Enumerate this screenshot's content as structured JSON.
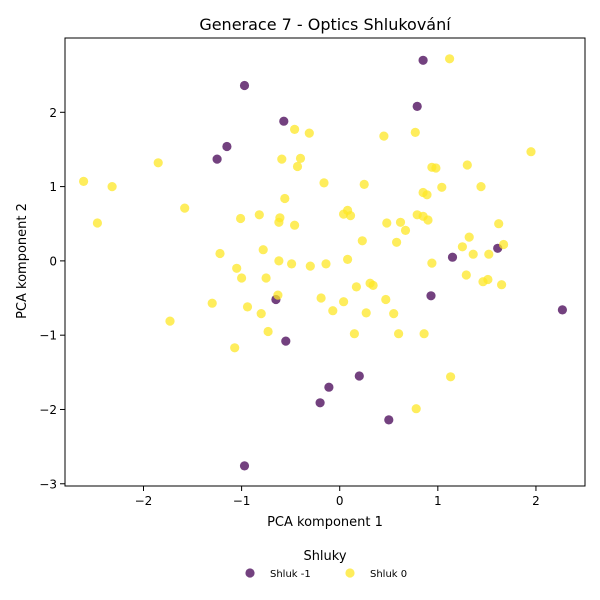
{
  "chart_data": {
    "type": "scatter",
    "title": "Generace 7 - Optics Shlukování",
    "xlabel": "PCA komponent 1",
    "ylabel": "PCA komponent 2",
    "xlim": [
      -2.8,
      2.5
    ],
    "ylim": [
      -3.03,
      3.0
    ],
    "xticks": [
      -2,
      -1,
      0,
      1,
      2
    ],
    "yticks": [
      -3,
      -2,
      -1,
      0,
      1,
      2
    ],
    "grid": false,
    "legend": {
      "title": "Shluky",
      "placement": "bottom-center"
    },
    "series": [
      {
        "name": "Shluk -1",
        "color": "#440154",
        "points": [
          [
            -0.97,
            2.36
          ],
          [
            0.85,
            2.7
          ],
          [
            0.79,
            2.08
          ],
          [
            -0.57,
            1.88
          ],
          [
            -1.15,
            1.54
          ],
          [
            -1.25,
            1.37
          ],
          [
            1.61,
            0.17
          ],
          [
            1.15,
            0.05
          ],
          [
            -0.65,
            -0.52
          ],
          [
            0.93,
            -0.47
          ],
          [
            -0.55,
            -1.08
          ],
          [
            2.27,
            -0.66
          ],
          [
            0.2,
            -1.55
          ],
          [
            -0.11,
            -1.7
          ],
          [
            -0.2,
            -1.91
          ],
          [
            0.5,
            -2.14
          ],
          [
            -0.97,
            -2.76
          ]
        ]
      },
      {
        "name": "Shluk 0",
        "color": "#fde725",
        "points": [
          [
            1.12,
            2.72
          ],
          [
            -0.46,
            1.77
          ],
          [
            -0.31,
            1.72
          ],
          [
            0.45,
            1.68
          ],
          [
            0.77,
            1.73
          ],
          [
            1.95,
            1.47
          ],
          [
            -1.85,
            1.32
          ],
          [
            -0.59,
            1.37
          ],
          [
            -0.4,
            1.38
          ],
          [
            -0.43,
            1.27
          ],
          [
            0.94,
            1.26
          ],
          [
            0.98,
            1.25
          ],
          [
            1.3,
            1.29
          ],
          [
            -2.61,
            1.07
          ],
          [
            -2.32,
            1.0
          ],
          [
            -0.16,
            1.05
          ],
          [
            0.25,
            1.03
          ],
          [
            1.04,
            0.99
          ],
          [
            1.44,
            1.0
          ],
          [
            0.85,
            0.92
          ],
          [
            0.89,
            0.89
          ],
          [
            -0.56,
            0.84
          ],
          [
            -1.58,
            0.71
          ],
          [
            -2.47,
            0.51
          ],
          [
            -1.01,
            0.57
          ],
          [
            -0.82,
            0.62
          ],
          [
            -0.61,
            0.58
          ],
          [
            -0.62,
            0.52
          ],
          [
            -0.46,
            0.48
          ],
          [
            0.04,
            0.63
          ],
          [
            0.08,
            0.68
          ],
          [
            0.11,
            0.61
          ],
          [
            0.79,
            0.62
          ],
          [
            0.85,
            0.6
          ],
          [
            0.9,
            0.55
          ],
          [
            0.48,
            0.51
          ],
          [
            0.62,
            0.52
          ],
          [
            0.67,
            0.41
          ],
          [
            1.62,
            0.5
          ],
          [
            0.23,
            0.27
          ],
          [
            0.58,
            0.25
          ],
          [
            1.32,
            0.32
          ],
          [
            1.25,
            0.19
          ],
          [
            -1.22,
            0.1
          ],
          [
            -0.78,
            0.15
          ],
          [
            1.36,
            0.09
          ],
          [
            1.52,
            0.09
          ],
          [
            1.67,
            0.22
          ],
          [
            0.08,
            0.02
          ],
          [
            -0.62,
            0.0
          ],
          [
            -0.49,
            -0.04
          ],
          [
            -0.3,
            -0.07
          ],
          [
            -0.14,
            -0.04
          ],
          [
            0.94,
            -0.03
          ],
          [
            -1.05,
            -0.1
          ],
          [
            -1.0,
            -0.23
          ],
          [
            -0.75,
            -0.23
          ],
          [
            1.29,
            -0.19
          ],
          [
            1.46,
            -0.28
          ],
          [
            1.51,
            -0.25
          ],
          [
            1.65,
            -0.32
          ],
          [
            0.31,
            -0.3
          ],
          [
            0.34,
            -0.33
          ],
          [
            0.17,
            -0.35
          ],
          [
            -0.63,
            -0.46
          ],
          [
            -0.19,
            -0.5
          ],
          [
            0.04,
            -0.55
          ],
          [
            0.47,
            -0.52
          ],
          [
            -1.3,
            -0.57
          ],
          [
            -0.94,
            -0.62
          ],
          [
            -0.8,
            -0.71
          ],
          [
            -0.07,
            -0.67
          ],
          [
            0.27,
            -0.7
          ],
          [
            0.55,
            -0.71
          ],
          [
            -1.73,
            -0.81
          ],
          [
            -0.73,
            -0.95
          ],
          [
            0.15,
            -0.98
          ],
          [
            0.6,
            -0.98
          ],
          [
            0.86,
            -0.98
          ],
          [
            -1.07,
            -1.17
          ],
          [
            1.13,
            -1.56
          ],
          [
            0.78,
            -1.99
          ]
        ]
      }
    ]
  }
}
